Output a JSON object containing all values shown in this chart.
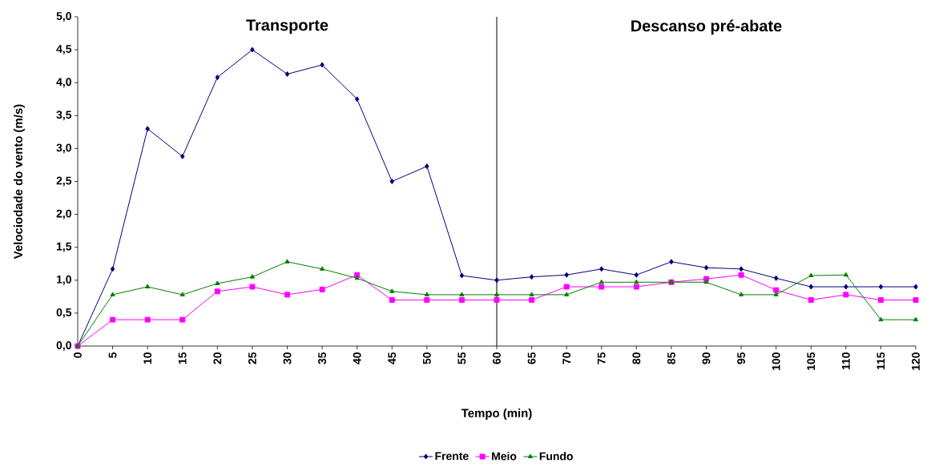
{
  "chart_data": {
    "type": "line",
    "xlabel": "Tempo (min)",
    "ylabel": "Velociodade do vento (m/s)",
    "x": [
      0,
      5,
      10,
      15,
      20,
      25,
      30,
      35,
      40,
      45,
      50,
      55,
      60,
      65,
      70,
      75,
      80,
      85,
      90,
      95,
      100,
      105,
      110,
      115,
      120
    ],
    "xlim": [
      0,
      120
    ],
    "xticks": [
      0,
      5,
      10,
      15,
      20,
      25,
      30,
      35,
      40,
      45,
      50,
      55,
      60,
      65,
      70,
      75,
      80,
      85,
      90,
      95,
      100,
      105,
      110,
      115,
      120
    ],
    "ylim": [
      0,
      5
    ],
    "yticks": [
      {
        "value": 0,
        "label": "0,0"
      },
      {
        "value": 0.5,
        "label": "0,5"
      },
      {
        "value": 1,
        "label": "1,0"
      },
      {
        "value": 1.5,
        "label": "1,5"
      },
      {
        "value": 2,
        "label": "2,0"
      },
      {
        "value": 2.5,
        "label": "2,5"
      },
      {
        "value": 3,
        "label": "3,0"
      },
      {
        "value": 3.5,
        "label": "3,5"
      },
      {
        "value": 4,
        "label": "4,0"
      },
      {
        "value": 4.5,
        "label": "4,5"
      },
      {
        "value": 5,
        "label": "5,0"
      }
    ],
    "series": [
      {
        "name": "Frente",
        "color": "#000080",
        "marker": "diamond",
        "values": [
          0,
          1.17,
          3.3,
          2.88,
          4.08,
          4.5,
          4.13,
          4.27,
          3.75,
          2.5,
          2.73,
          1.07,
          1.0,
          1.05,
          1.08,
          1.17,
          1.08,
          1.28,
          1.19,
          1.17,
          1.03,
          0.9,
          0.9,
          0.9,
          0.9
        ]
      },
      {
        "name": "Meio",
        "color": "#ff00ff",
        "marker": "square",
        "values": [
          0,
          0.4,
          0.4,
          0.4,
          0.83,
          0.9,
          0.78,
          0.86,
          1.08,
          0.7,
          0.7,
          0.7,
          0.7,
          0.7,
          0.9,
          0.9,
          0.9,
          0.97,
          1.02,
          1.08,
          0.85,
          0.7,
          0.78,
          0.7,
          0.7
        ]
      },
      {
        "name": "Fundo",
        "color": "#008000",
        "marker": "triangle",
        "values": [
          0,
          0.78,
          0.9,
          0.78,
          0.95,
          1.05,
          1.28,
          1.17,
          1.03,
          0.83,
          0.78,
          0.78,
          0.78,
          0.78,
          0.78,
          0.97,
          0.97,
          0.97,
          0.97,
          0.78,
          0.78,
          1.07,
          1.08,
          0.4,
          0.4
        ]
      }
    ],
    "ref_lines": [
      {
        "axis": "x",
        "value": 60,
        "color": "#000000",
        "line_style": "solid"
      }
    ],
    "annotations": [
      "Transporte",
      "Descanso pré-abate"
    ],
    "legend": "bottom",
    "grid": false,
    "line_style": "solid"
  }
}
